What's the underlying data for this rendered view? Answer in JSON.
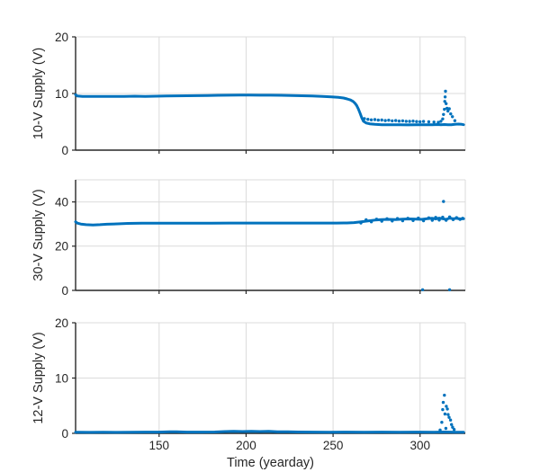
{
  "xlabel": "Time (yearday)",
  "colors": {
    "line": "#0072BD",
    "axis": "#262626",
    "grid": "#DBDBDB",
    "text": "#262626"
  },
  "chart_data": [
    {
      "type": "line",
      "ylabel": "10-V Supply (V)",
      "xlabel": "",
      "xlim": [
        102,
        326
      ],
      "ylim": [
        0,
        20
      ],
      "yticks": [
        0,
        10,
        20
      ],
      "xticks": [
        150,
        200,
        250,
        300
      ],
      "grid": true,
      "legend": "none",
      "line": [
        [
          102,
          9.8
        ],
        [
          103,
          9.55
        ],
        [
          106,
          9.5
        ],
        [
          112,
          9.48
        ],
        [
          118,
          9.5
        ],
        [
          124,
          9.48
        ],
        [
          130,
          9.5
        ],
        [
          136,
          9.52
        ],
        [
          142,
          9.5
        ],
        [
          148,
          9.52
        ],
        [
          154,
          9.55
        ],
        [
          160,
          9.58
        ],
        [
          166,
          9.6
        ],
        [
          172,
          9.62
        ],
        [
          178,
          9.65
        ],
        [
          184,
          9.68
        ],
        [
          190,
          9.7
        ],
        [
          196,
          9.72
        ],
        [
          202,
          9.72
        ],
        [
          208,
          9.7
        ],
        [
          214,
          9.7
        ],
        [
          220,
          9.68
        ],
        [
          226,
          9.65
        ],
        [
          232,
          9.6
        ],
        [
          238,
          9.55
        ],
        [
          244,
          9.5
        ],
        [
          249,
          9.42
        ],
        [
          253,
          9.32
        ],
        [
          256,
          9.2
        ],
        [
          258,
          9.05
        ],
        [
          260,
          8.85
        ],
        [
          261.5,
          8.6
        ],
        [
          262.5,
          8.3
        ],
        [
          263.5,
          7.9
        ],
        [
          264.5,
          7.3
        ],
        [
          265.5,
          6.5
        ],
        [
          266.5,
          5.7
        ],
        [
          267.5,
          5.1
        ],
        [
          269,
          4.8
        ],
        [
          271,
          4.65
        ],
        [
          274,
          4.55
        ],
        [
          278,
          4.5
        ],
        [
          283,
          4.48
        ],
        [
          288,
          4.5
        ],
        [
          293,
          4.46
        ],
        [
          298,
          4.5
        ],
        [
          303,
          4.47
        ],
        [
          307,
          4.5
        ],
        [
          310,
          4.52
        ],
        [
          312,
          4.48
        ],
        [
          314,
          4.52
        ],
        [
          316,
          4.48
        ],
        [
          318,
          4.5
        ],
        [
          320,
          4.55
        ],
        [
          322,
          4.6
        ],
        [
          324,
          4.55
        ],
        [
          325,
          4.5
        ]
      ],
      "scatter": [
        [
          268,
          5.55
        ],
        [
          270,
          5.45
        ],
        [
          272,
          5.35
        ],
        [
          274,
          5.4
        ],
        [
          276,
          5.3
        ],
        [
          278,
          5.32
        ],
        [
          280,
          5.22
        ],
        [
          282,
          5.28
        ],
        [
          284,
          5.18
        ],
        [
          286,
          5.22
        ],
        [
          288,
          5.12
        ],
        [
          290,
          5.18
        ],
        [
          292,
          5.1
        ],
        [
          294,
          5.08
        ],
        [
          296,
          5.12
        ],
        [
          298,
          5.05
        ],
        [
          300,
          5.02
        ],
        [
          302,
          5.06
        ],
        [
          305,
          5.0
        ],
        [
          308,
          4.95
        ],
        [
          310.5,
          4.9
        ],
        [
          312,
          5.1
        ],
        [
          313,
          5.5
        ],
        [
          313.5,
          6.3
        ],
        [
          314,
          7.2
        ],
        [
          314.2,
          8.6
        ],
        [
          314.4,
          9.4
        ],
        [
          314.6,
          10.4
        ],
        [
          315,
          8.2
        ],
        [
          315.5,
          7.4
        ],
        [
          316,
          6.9
        ],
        [
          316.8,
          7.3
        ],
        [
          317.6,
          6.4
        ],
        [
          318.6,
          5.9
        ],
        [
          320,
          5.2
        ]
      ]
    },
    {
      "type": "line",
      "ylabel": "30-V Supply (V)",
      "xlabel": "",
      "xlim": [
        102,
        326
      ],
      "ylim": [
        0,
        50
      ],
      "yticks": [
        0,
        20,
        40
      ],
      "xticks": [
        150,
        200,
        250,
        300
      ],
      "grid": true,
      "legend": "none",
      "line": [
        [
          102,
          31.0
        ],
        [
          103,
          30.4
        ],
        [
          105,
          30.0
        ],
        [
          108,
          29.7
        ],
        [
          112,
          29.6
        ],
        [
          116,
          29.7
        ],
        [
          120,
          29.9
        ],
        [
          126,
          30.1
        ],
        [
          132,
          30.3
        ],
        [
          140,
          30.35
        ],
        [
          152,
          30.4
        ],
        [
          166,
          30.4
        ],
        [
          180,
          30.4
        ],
        [
          195,
          30.45
        ],
        [
          210,
          30.45
        ],
        [
          225,
          30.45
        ],
        [
          240,
          30.45
        ],
        [
          252,
          30.45
        ],
        [
          258,
          30.5
        ],
        [
          262,
          30.65
        ],
        [
          266,
          31.0
        ],
        [
          270,
          31.4
        ],
        [
          274,
          31.8
        ],
        [
          278,
          32.0
        ],
        [
          282,
          32.1
        ],
        [
          286,
          32.0
        ],
        [
          290,
          32.2
        ],
        [
          294,
          32.3
        ],
        [
          298,
          32.2
        ],
        [
          301,
          32.1
        ],
        [
          304,
          32.4
        ],
        [
          307,
          32.6
        ],
        [
          309,
          32.3
        ],
        [
          311,
          32.7
        ],
        [
          313,
          32.4
        ],
        [
          315,
          32.1
        ],
        [
          317,
          32.7
        ],
        [
          319,
          32.4
        ],
        [
          321,
          32.6
        ],
        [
          323,
          32.3
        ],
        [
          325,
          32.4
        ]
      ],
      "scatter": [
        [
          266,
          30.5
        ],
        [
          269,
          31.9
        ],
        [
          272,
          31.0
        ],
        [
          275,
          32.2
        ],
        [
          278,
          31.3
        ],
        [
          281,
          32.4
        ],
        [
          284,
          31.4
        ],
        [
          287,
          32.5
        ],
        [
          290,
          31.5
        ],
        [
          293,
          32.6
        ],
        [
          296,
          31.6
        ],
        [
          299,
          32.7
        ],
        [
          302,
          31.5
        ],
        [
          305,
          32.8
        ],
        [
          307,
          31.7
        ],
        [
          309,
          33.0
        ],
        [
          311,
          31.8
        ],
        [
          313,
          33.1
        ],
        [
          315,
          31.7
        ],
        [
          317,
          33.2
        ],
        [
          319,
          32.0
        ],
        [
          321,
          32.9
        ],
        [
          323,
          32.1
        ],
        [
          324.5,
          32.6
        ],
        [
          313.5,
          40.2
        ],
        [
          301.5,
          0.3
        ],
        [
          317,
          0.3
        ]
      ]
    },
    {
      "type": "line",
      "ylabel": "12-V Supply (V)",
      "xlabel": "Time (yearday)",
      "xlim": [
        102,
        326
      ],
      "ylim": [
        0,
        20
      ],
      "yticks": [
        0,
        10,
        20
      ],
      "xticks": [
        150,
        200,
        250,
        300
      ],
      "grid": true,
      "legend": "none",
      "line": [
        [
          102,
          0.2
        ],
        [
          110,
          0.18
        ],
        [
          118,
          0.2
        ],
        [
          126,
          0.18
        ],
        [
          134,
          0.2
        ],
        [
          142,
          0.22
        ],
        [
          150,
          0.22
        ],
        [
          156,
          0.3
        ],
        [
          160,
          0.28
        ],
        [
          166,
          0.22
        ],
        [
          174,
          0.22
        ],
        [
          182,
          0.25
        ],
        [
          188,
          0.32
        ],
        [
          193,
          0.38
        ],
        [
          198,
          0.32
        ],
        [
          203,
          0.35
        ],
        [
          208,
          0.32
        ],
        [
          213,
          0.35
        ],
        [
          218,
          0.3
        ],
        [
          224,
          0.28
        ],
        [
          230,
          0.25
        ],
        [
          238,
          0.22
        ],
        [
          248,
          0.2
        ],
        [
          258,
          0.22
        ],
        [
          268,
          0.2
        ],
        [
          278,
          0.22
        ],
        [
          288,
          0.2
        ],
        [
          298,
          0.22
        ],
        [
          308,
          0.2
        ],
        [
          314,
          0.25
        ],
        [
          320,
          0.2
        ],
        [
          325,
          0.2
        ]
      ],
      "scatter": [
        [
          311.5,
          0.6
        ],
        [
          312.5,
          2.0
        ],
        [
          313,
          4.3
        ],
        [
          313.3,
          5.6
        ],
        [
          314,
          6.9
        ],
        [
          314.3,
          3.5
        ],
        [
          314.8,
          0.9
        ],
        [
          315.1,
          4.9
        ],
        [
          315.7,
          4.4
        ],
        [
          316.1,
          3.4
        ],
        [
          316.7,
          2.9
        ],
        [
          317.5,
          2.4
        ],
        [
          318.1,
          1.6
        ],
        [
          318.7,
          1.1
        ],
        [
          319.6,
          0.7
        ]
      ]
    }
  ]
}
